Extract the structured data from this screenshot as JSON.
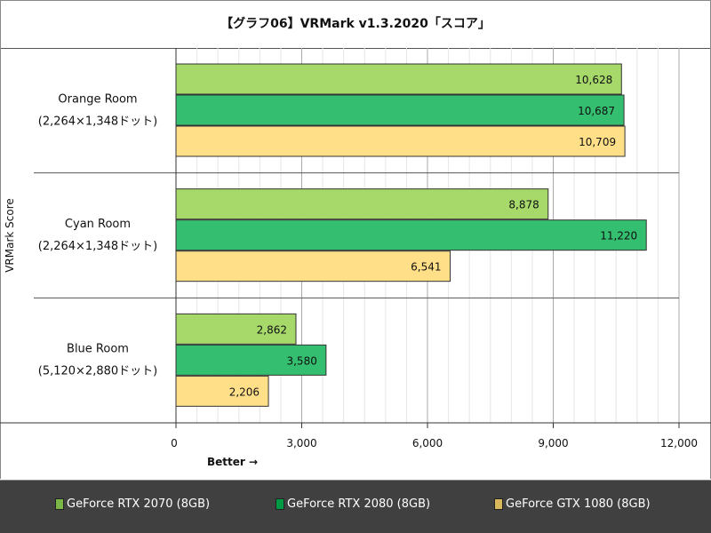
{
  "chart_data": {
    "type": "bar",
    "orientation": "horizontal",
    "title": "【グラフ06】VRMark v1.3.2020「スコア」",
    "ylabel": "VRMark Score",
    "xlabel": "Better →",
    "xlim": [
      0,
      12000
    ],
    "xticks": [
      "0",
      "3,000",
      "6,000",
      "9,000",
      "12,000"
    ],
    "xtick_values": [
      0,
      3000,
      6000,
      9000,
      12000
    ],
    "grid": true,
    "legend_position": "bottom",
    "categories": [
      {
        "name": "Orange Room",
        "sub": "(2,264×1,348ドット)"
      },
      {
        "name": "Cyan Room",
        "sub": "(2,264×1,348ドット)"
      },
      {
        "name": "Blue Room",
        "sub": "(5,120×2,880ドット)"
      }
    ],
    "series": [
      {
        "name": "GeForce RTX 2070 (8GB)",
        "color": "#a6d96a",
        "values": [
          10628,
          8878,
          2862
        ],
        "labels": [
          "10,628",
          "8,878",
          "2,862"
        ]
      },
      {
        "name": "GeForce RTX 2080 (8GB)",
        "color": "#33bf6f",
        "values": [
          10687,
          11220,
          3580
        ],
        "labels": [
          "10,687",
          "11,220",
          "3,580"
        ]
      },
      {
        "name": "GeForce GTX 1080 (8GB)",
        "color": "#ffdf88",
        "values": [
          10709,
          6541,
          2206
        ],
        "labels": [
          "10,709",
          "6,541",
          "2,206"
        ]
      }
    ]
  }
}
